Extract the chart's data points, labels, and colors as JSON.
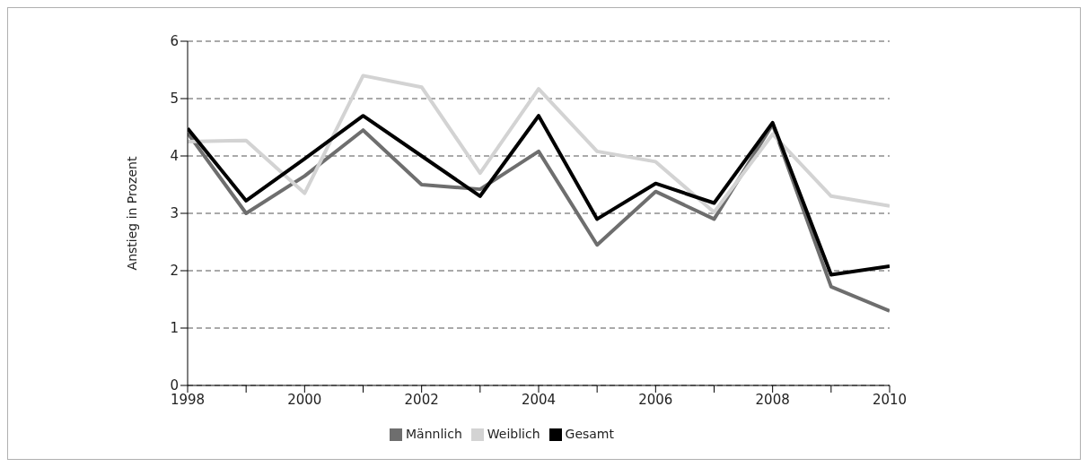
{
  "chart_data": {
    "type": "line",
    "ylabel": "Anstieg in Prozent",
    "x": [
      1998,
      1999,
      2000,
      2001,
      2002,
      2003,
      2004,
      2005,
      2006,
      2007,
      2008,
      2009,
      2010
    ],
    "xlim": [
      1998,
      2010
    ],
    "xticks": [
      1998,
      {
        "value": 1999,
        "label": null
      },
      2000,
      {
        "value": 2001,
        "label": null
      },
      2002,
      {
        "value": 2003,
        "label": null
      },
      2004,
      {
        "value": 2005,
        "label": null
      },
      2006,
      {
        "value": 2007,
        "label": null
      },
      2008,
      {
        "value": 2009,
        "label": null
      },
      2010
    ],
    "ylim": [
      0,
      6
    ],
    "yticks": [
      0,
      1,
      2,
      3,
      4,
      5,
      6
    ],
    "grid": "y",
    "legend": "bottom",
    "marker": "none",
    "line_style": "solid",
    "series": [
      {
        "name": "Männlich",
        "color": "#6e6e6e",
        "values": [
          4.4,
          3.0,
          3.65,
          4.45,
          3.5,
          3.42,
          4.08,
          2.45,
          3.38,
          2.9,
          4.55,
          1.72,
          1.3
        ]
      },
      {
        "name": "Weiblich",
        "color": "#d3d3d3",
        "values": [
          4.25,
          4.27,
          3.35,
          5.4,
          5.2,
          3.7,
          5.17,
          4.08,
          3.9,
          3.02,
          4.38,
          3.3,
          3.13
        ]
      },
      {
        "name": "Gesamt",
        "color": "#000000",
        "values": [
          4.48,
          3.22,
          3.95,
          4.7,
          4.0,
          3.3,
          4.7,
          2.9,
          3.52,
          3.18,
          4.58,
          1.93,
          2.08
        ]
      }
    ]
  }
}
